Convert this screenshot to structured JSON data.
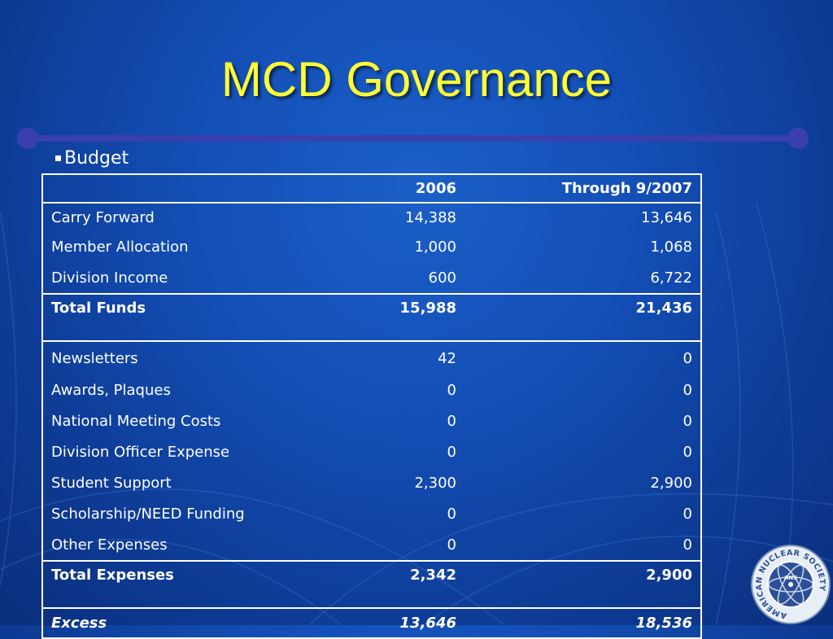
{
  "slide": {
    "title": "MCD Governance",
    "bullet": "Budget"
  },
  "table": {
    "headers": [
      "",
      "2006",
      "Through 9/2007"
    ],
    "funds": [
      {
        "label": "Carry Forward",
        "y2006": "14,388",
        "y2007": "13,646"
      },
      {
        "label": "Member Allocation",
        "y2006": "1,000",
        "y2007": "1,068"
      },
      {
        "label": "Division Income",
        "y2006": "600",
        "y2007": "6,722"
      }
    ],
    "total_funds": {
      "label": "Total Funds",
      "y2006": "15,988",
      "y2007": "21,436"
    },
    "expenses": [
      {
        "label": "Newsletters",
        "y2006": "42",
        "y2007": "0"
      },
      {
        "label": "Awards, Plaques",
        "y2006": "0",
        "y2007": "0"
      },
      {
        "label": "National Meeting Costs",
        "y2006": "0",
        "y2007": "0"
      },
      {
        "label": "Division Officer Expense",
        "y2006": "0",
        "y2007": "0"
      },
      {
        "label": "Student Support",
        "y2006": "2,300",
        "y2007": "2,900"
      },
      {
        "label": "Scholarship/NEED Funding",
        "y2006": "0",
        "y2007": "0"
      },
      {
        "label": "Other Expenses",
        "y2006": "0",
        "y2007": "0"
      }
    ],
    "total_expenses": {
      "label": "Total Expenses",
      "y2006": "2,342",
      "y2007": "2,900"
    },
    "excess": {
      "label": "Excess",
      "y2006": "13,646",
      "y2007": "18,536"
    }
  },
  "logo": {
    "text": "AMERICAN NUCLEAR SOCIETY",
    "letters": "ANS"
  },
  "colors": {
    "background": "#1450b8",
    "title": "#ffff33",
    "rule": "#3a3fae",
    "text": "#ffffff"
  }
}
